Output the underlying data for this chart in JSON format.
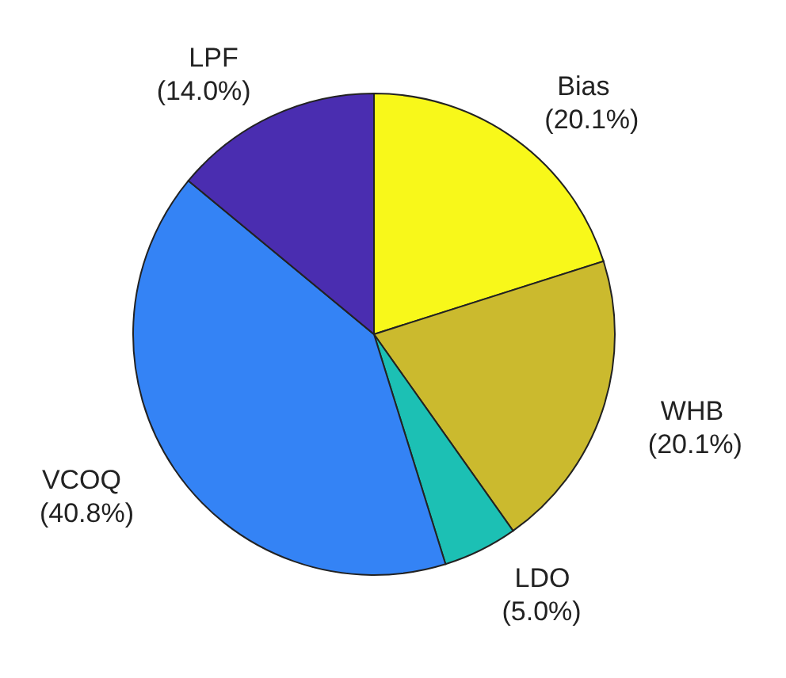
{
  "chart_data": {
    "type": "pie",
    "categories": [
      "Bias",
      "WHB",
      "LDO",
      "VCOQ",
      "LPF"
    ],
    "values": [
      20.1,
      20.1,
      5.0,
      40.8,
      14.0
    ],
    "value_labels": [
      "(20.1%)",
      "(20.1%)",
      "(5.0%)",
      "(40.8%)",
      "(14.0%)"
    ],
    "colors": [
      "#f8f81a",
      "#cbba2e",
      "#1cc0b4",
      "#3483f5",
      "#4a2db0"
    ]
  }
}
